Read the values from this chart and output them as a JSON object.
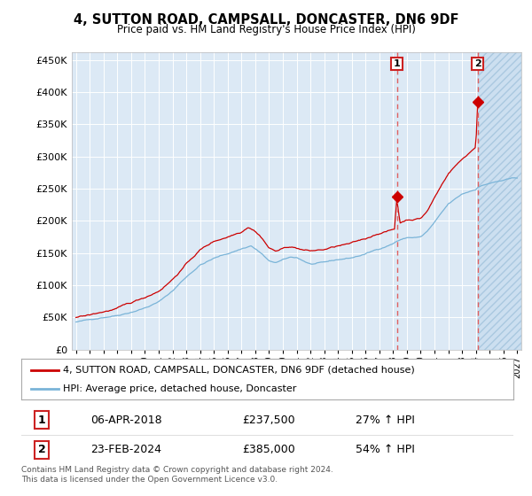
{
  "title": "4, SUTTON ROAD, CAMPSALL, DONCASTER, DN6 9DF",
  "subtitle": "Price paid vs. HM Land Registry's House Price Index (HPI)",
  "ytick_values": [
    0,
    50000,
    100000,
    150000,
    200000,
    250000,
    300000,
    350000,
    400000,
    450000
  ],
  "ylim": [
    0,
    462000
  ],
  "xlim_start": 1994.7,
  "xlim_end": 2027.3,
  "background_color": "#ffffff",
  "plot_bg_color": "#dce9f5",
  "grid_color": "#ffffff",
  "hpi_color": "#7ab4d8",
  "price_color": "#cc0000",
  "transaction1_x": 2018.27,
  "transaction1_y": 237500,
  "transaction2_x": 2024.12,
  "transaction2_y": 385000,
  "vline_color": "#e06060",
  "legend_label1": "4, SUTTON ROAD, CAMPSALL, DONCASTER, DN6 9DF (detached house)",
  "legend_label2": "HPI: Average price, detached house, Doncaster",
  "annot1_label": "1",
  "annot1_date": "06-APR-2018",
  "annot1_price": "£237,500",
  "annot1_hpi": "27% ↑ HPI",
  "annot2_label": "2",
  "annot2_date": "23-FEB-2024",
  "annot2_price": "£385,000",
  "annot2_hpi": "54% ↑ HPI",
  "footer": "Contains HM Land Registry data © Crown copyright and database right 2024.\nThis data is licensed under the Open Government Licence v3.0.",
  "future_shade_start": 2024.12,
  "future_shade_end": 2027.3
}
